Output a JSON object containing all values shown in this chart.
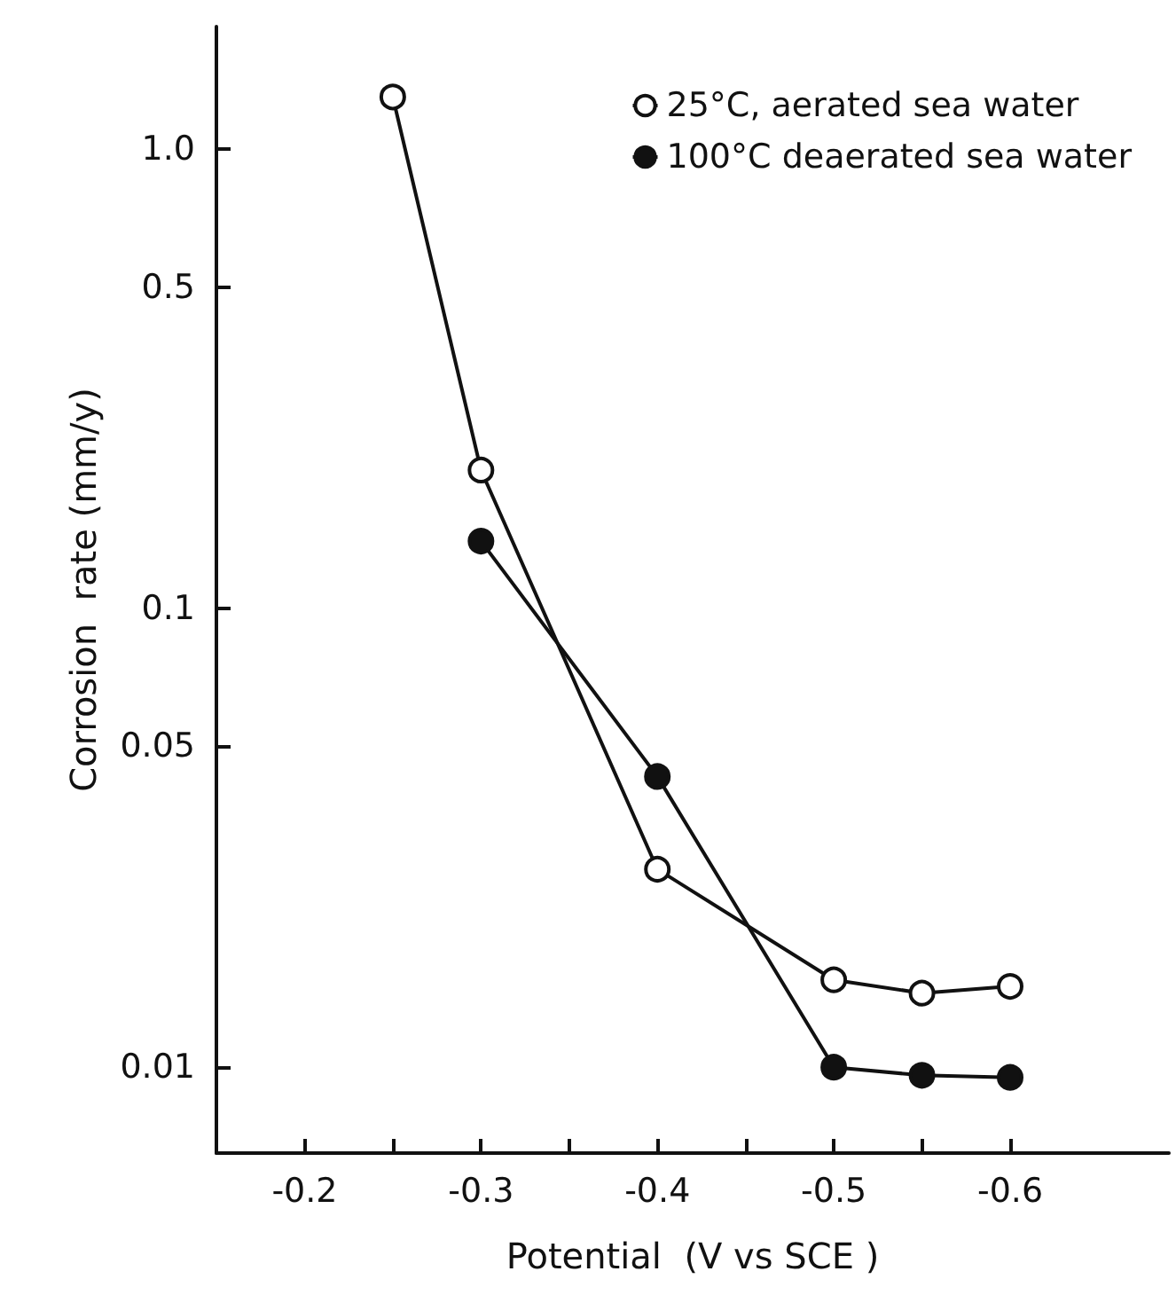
{
  "chart_data": {
    "type": "line",
    "xlabel": "Potential  (V vs SCE )",
    "ylabel": "Corrosion  rate (mm/y)",
    "xlim": [
      -0.15,
      -0.69
    ],
    "xticks": [
      -0.2,
      {
        "value": -0.25,
        "label": null
      },
      -0.3,
      {
        "value": -0.35,
        "label": null
      },
      -0.4,
      {
        "value": -0.45,
        "label": null
      },
      -0.5,
      {
        "value": -0.55,
        "label": null
      },
      -0.6
    ],
    "ylim": [
      0.0065,
      1.85
    ],
    "yticks": [
      {
        "value": 1,
        "label": "1.0"
      },
      0.5,
      0.1,
      0.05,
      0.01
    ],
    "log": "y",
    "grid": false,
    "legend": "top right",
    "marker": "circle",
    "line_style": "solid",
    "series": [
      {
        "name": "25°C, aerated sea water",
        "color": "#111111",
        "x": [
          -0.25,
          -0.3,
          -0.4,
          -0.5,
          -0.55,
          -0.6
        ],
        "values": [
          1.3,
          0.2,
          0.027,
          0.0155,
          0.0145,
          0.015
        ]
      },
      {
        "name": "100°C deaerated sea water",
        "color": "#111111",
        "x": [
          -0.3,
          -0.4,
          -0.5,
          -0.55,
          -0.6
        ],
        "values": [
          0.14,
          0.043,
          0.01,
          0.0096,
          0.0095
        ]
      }
    ]
  }
}
